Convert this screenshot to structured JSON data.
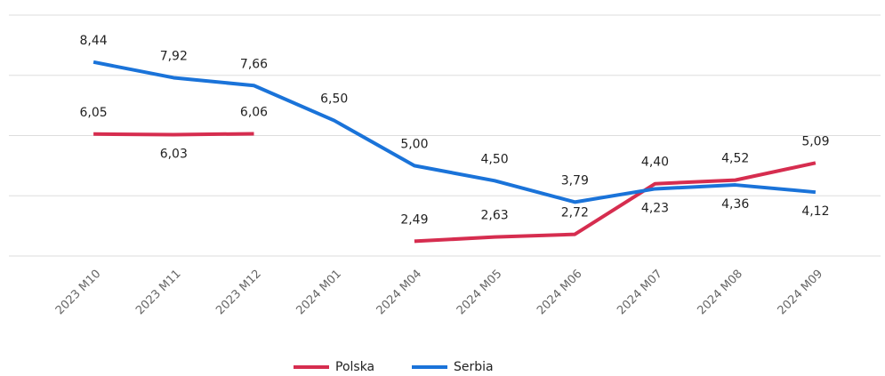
{
  "chart_data": {
    "type": "line",
    "categories": [
      "2023 M10",
      "2023 M11",
      "2023 M12",
      "2024 M01",
      "2024 M04",
      "2024 M05",
      "2024 M06",
      "2024 M07",
      "2024 M08",
      "2024 M09"
    ],
    "series": [
      {
        "name": "Polska",
        "color": "#d62d4f",
        "values": [
          6.05,
          6.03,
          6.06,
          null,
          2.49,
          2.63,
          2.72,
          4.4,
          4.52,
          5.09
        ],
        "value_labels": [
          "6,05",
          "6,03",
          "6,06",
          null,
          "2,49",
          "2,63",
          "2,72",
          "4,40",
          "4,52",
          "5,09"
        ]
      },
      {
        "name": "Serbia",
        "color": "#1a73d9",
        "values": [
          8.44,
          7.92,
          7.66,
          6.5,
          5.0,
          4.5,
          3.79,
          4.23,
          4.36,
          4.12
        ],
        "value_labels": [
          "8,44",
          "7,92",
          "7,66",
          "6,50",
          "5,00",
          "4,50",
          "3,79",
          "4,23",
          "4,36",
          "4,12"
        ]
      }
    ],
    "ylim": [
      2,
      10
    ],
    "yticks": [
      2,
      4,
      6,
      8,
      10
    ],
    "grid": true,
    "legend": "bottom"
  }
}
